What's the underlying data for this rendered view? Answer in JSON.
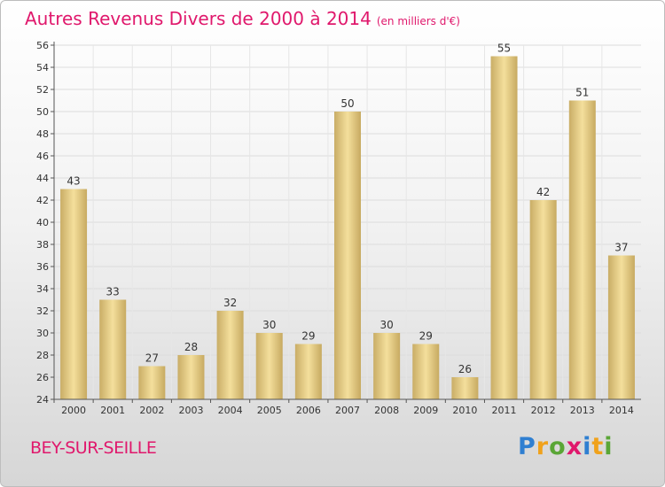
{
  "header": {
    "title": "Autres Revenus Divers de 2000 à 2014",
    "subtitle": "(en milliers d'€)"
  },
  "footer": {
    "place": "BEY-SUR-SEILLE",
    "logo": [
      "P",
      "r",
      "o",
      "x",
      "i",
      "t",
      "i"
    ],
    "logo_text": "Proxiti"
  },
  "colors": {
    "accent": "#e0186c",
    "bar_light": "#f4df9c",
    "bar_dark": "#c7aa61",
    "logo_blue": "#2f7fd1",
    "logo_orange": "#f0a21c",
    "logo_green": "#5aa636"
  },
  "chart_data": {
    "type": "bar",
    "title": "Autres Revenus Divers de 2000 à 2014",
    "subtitle": "(en milliers d'€)",
    "xlabel": "",
    "ylabel": "",
    "categories": [
      "2000",
      "2001",
      "2002",
      "2003",
      "2004",
      "2005",
      "2006",
      "2007",
      "2008",
      "2009",
      "2010",
      "2011",
      "2012",
      "2013",
      "2014"
    ],
    "values": [
      43,
      33,
      27,
      28,
      32,
      30,
      29,
      50,
      30,
      29,
      26,
      55,
      42,
      51,
      37
    ],
    "ylim": [
      24,
      56
    ],
    "yticks": [
      24,
      26,
      28,
      30,
      32,
      34,
      36,
      38,
      40,
      42,
      44,
      46,
      48,
      50,
      52,
      54,
      56
    ],
    "grid": true,
    "data_labels": true
  }
}
